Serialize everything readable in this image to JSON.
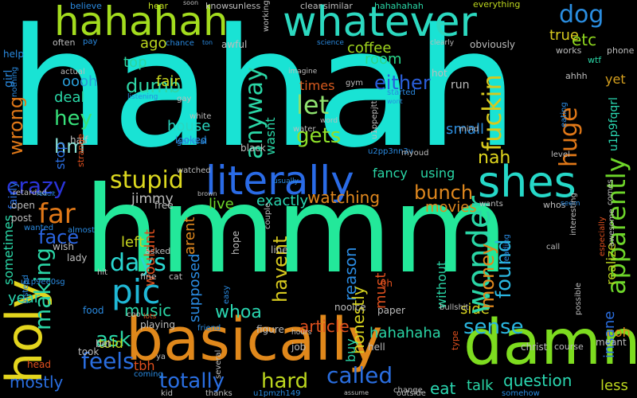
{
  "words": {
    "hahah": {
      "text": "hahah",
      "color": "#19e3d4"
    },
    "hmmm": {
      "text": "hmmm",
      "color": "#23e89a"
    },
    "basically": {
      "text": "basically",
      "color": "#e0881b"
    },
    "damn": {
      "text": "damn",
      "color": "#7ddc1f"
    },
    "hahahah": {
      "text": "hahahah",
      "color": "#a3dc1e"
    },
    "whatever": {
      "text": "whatever",
      "color": "#2cd9c0"
    },
    "literally": {
      "text": "literally",
      "color": "#2a6be6"
    },
    "shes": {
      "text": "shes",
      "color": "#26d8c8"
    },
    "holy": {
      "text": "holy",
      "color": "#e3d51e"
    },
    "stupid": {
      "text": "stupid",
      "color": "#dcd81f"
    },
    "crazy": {
      "text": "crazy",
      "color": "#2a34d9"
    },
    "far": {
      "text": "far",
      "color": "#e07818"
    },
    "pic": {
      "text": "pic",
      "color": "#20b8d6"
    },
    "dumb": {
      "text": "dumb",
      "color": "#2fd6a6"
    },
    "hey": {
      "text": "hey",
      "color": "#37e07a"
    },
    "hm": {
      "text": "hm",
      "color": "#8ae0d6"
    },
    "let": {
      "text": "let",
      "color": "#8ee06e"
    },
    "either": {
      "text": "either",
      "color": "#2a5ed9"
    },
    "gets": {
      "text": "gets",
      "color": "#8ee02a"
    },
    "dog": {
      "text": "dog",
      "color": "#2a8de0"
    },
    "etc": {
      "text": "etc",
      "color": "#8ed61e"
    },
    "true": {
      "text": "true",
      "color": "#d6c81e"
    },
    "coffee": {
      "text": "coffee",
      "color": "#a0d61e"
    },
    "room": {
      "text": "room",
      "color": "#2ad68a"
    },
    "top": {
      "text": "top",
      "color": "#2ad6a0"
    },
    "ago": {
      "text": "ago",
      "color": "#bcd61e"
    },
    "oooh": {
      "text": "oooh",
      "color": "#2a9ed9"
    },
    "deal": {
      "text": "deal",
      "color": "#2ad6a6"
    },
    "fair": {
      "text": "fair",
      "color": "#c8d61e"
    },
    "times": {
      "text": "times",
      "color": "#d65a1e"
    },
    "house": {
      "text": "house",
      "color": "#2ad6c0"
    },
    "nah": {
      "text": "nah",
      "color": "#e0d61e"
    },
    "small": {
      "text": "small",
      "color": "#2a8ad9"
    },
    "bunch": {
      "text": "bunch",
      "color": "#e0881e"
    },
    "watching": {
      "text": "watching",
      "color": "#e0881e"
    },
    "using": {
      "text": "using",
      "color": "#2ad6a6"
    },
    "exactly": {
      "text": "exactly",
      "color": "#2ad6b0"
    },
    "movies": {
      "text": "movies",
      "color": "#e0881e"
    },
    "live": {
      "text": "live",
      "color": "#6ed62a"
    },
    "jimmy": {
      "text": "jimmy",
      "color": "#bcbcbc"
    },
    "face": {
      "text": "face",
      "color": "#2a64e0"
    },
    "days": {
      "text": "days",
      "color": "#2ad6d0"
    },
    "left": {
      "text": "left",
      "color": "#c8d61e"
    },
    "music": {
      "text": "music",
      "color": "#2ad6a6"
    },
    "ask": {
      "text": "ask",
      "color": "#2ad6a6"
    },
    "feels": {
      "text": "feels",
      "color": "#2a6ee0"
    },
    "told": {
      "text": "told",
      "color": "#bcd61e"
    },
    "totally": {
      "text": "totally",
      "color": "#2a6ee0"
    },
    "hard": {
      "text": "hard",
      "color": "#bcd61e"
    },
    "called": {
      "text": "called",
      "color": "#2a6ee0"
    },
    "talk": {
      "text": "talk",
      "color": "#2ad6a6"
    },
    "question": {
      "text": "question",
      "color": "#2ad6b0"
    },
    "less": {
      "text": "less",
      "color": "#bcd61e"
    },
    "eat": {
      "text": "eat",
      "color": "#2ad6b0"
    },
    "mostly": {
      "text": "mostly",
      "color": "#2a6ee0"
    },
    "tbh": {
      "text": "tbh",
      "color": "#e0501e"
    },
    "year": {
      "text": "year",
      "color": "#2ad6b0"
    },
    "side": {
      "text": "side",
      "color": "#d6d21e"
    },
    "sense": {
      "text": "sense",
      "color": "#2ab6e0"
    },
    "ooh": {
      "text": "ooh",
      "color": "#e0881e"
    },
    "yet": {
      "text": "yet",
      "color": "#d6a01e"
    },
    "hahahaha": {
      "text": "hahahaha",
      "color": "#2ad6a6"
    },
    "whoa": {
      "text": "whoa",
      "color": "#2ad6b0"
    },
    "article": {
      "text": "article",
      "color": "#e0501e"
    },
    "fancy": {
      "text": "fancy",
      "color": "#2ad6a6"
    }
  },
  "vertical_words": [
    {
      "text": "wonder",
      "color": "#2ad6a6",
      "size": 40
    },
    {
      "text": "apparently",
      "color": "#6ed62a",
      "size": 32
    },
    {
      "text": "anyway",
      "color": "#2ad6a6",
      "size": 30
    },
    {
      "text": "fuckin",
      "color": "#d6c81e",
      "size": 32
    },
    {
      "text": "huge",
      "color": "#e07818",
      "size": 30
    },
    {
      "text": "making",
      "color": "#2ad6a6",
      "size": 28
    },
    {
      "text": "wrong",
      "color": "#e07818",
      "size": 24
    },
    {
      "text": "havent",
      "color": "#d6c81e",
      "size": 24
    },
    {
      "text": "money",
      "color": "#e0881e",
      "size": 24
    },
    {
      "text": "found",
      "color": "#2ab6e0",
      "size": 26
    },
    {
      "text": "reason",
      "color": "#2a8ae0",
      "size": 20
    },
    {
      "text": "honestly",
      "color": "#d6d21e",
      "size": 20
    },
    {
      "text": "supposed",
      "color": "#2a8ae0",
      "size": 18
    },
    {
      "text": "arent",
      "color": "#e0881e",
      "size": 18
    },
    {
      "text": "wouldnt",
      "color": "#e0501e",
      "size": 18
    },
    {
      "text": "sometimes",
      "color": "#2ad6a6",
      "size": 16
    },
    {
      "text": "fairly",
      "color": "#2a6ee0",
      "size": 14
    },
    {
      "text": "stop",
      "color": "#2a6ee0",
      "size": 16
    },
    {
      "text": "must",
      "color": "#e0501e",
      "size": 18
    },
    {
      "text": "without",
      "color": "#2ad6a6",
      "size": 16
    },
    {
      "text": "buy",
      "color": "#2ad6a6",
      "size": 16
    },
    {
      "text": "insane",
      "color": "#2a6ee0",
      "size": 18
    },
    {
      "text": "realize",
      "color": "#bcd61e",
      "size": 16
    },
    {
      "text": "u1p9fqqrl",
      "color": "#2ad6b0",
      "size": 14
    },
    {
      "text": "wasnt",
      "color": "#2ad6a6",
      "size": 16
    },
    {
      "text": "girl",
      "color": "#2a8ae0",
      "size": 14
    }
  ],
  "small_words": [
    {
      "text": "believe",
      "color": "#2a8ae0"
    },
    {
      "text": "hear",
      "color": "#bcd61e"
    },
    {
      "text": "soon",
      "color": "#bcbcbc"
    },
    {
      "text": "knows",
      "color": "#bcbcbc"
    },
    {
      "text": "unless",
      "color": "#bcbcbc"
    },
    {
      "text": "clear",
      "color": "#bcbcbc"
    },
    {
      "text": "similar",
      "color": "#bcbcbc"
    },
    {
      "text": "everything",
      "color": "#bcd61e"
    },
    {
      "text": "hahahahah",
      "color": "#2ad6a6"
    },
    {
      "text": "often",
      "color": "#bcbcbc"
    },
    {
      "text": "pay",
      "color": "#2a8ae0"
    },
    {
      "text": "chance",
      "color": "#2a8ae0"
    },
    {
      "text": "ton",
      "color": "#2a8ae0"
    },
    {
      "text": "awful",
      "color": "#bcbcbc"
    },
    {
      "text": "working",
      "color": "#bcbcbc"
    },
    {
      "text": "science",
      "color": "#2a8ae0"
    },
    {
      "text": "clearly",
      "color": "#bcbcbc"
    },
    {
      "text": "obviously",
      "color": "#bcbcbc"
    },
    {
      "text": "works",
      "color": "#bcbcbc"
    },
    {
      "text": "phone",
      "color": "#bcbcbc"
    },
    {
      "text": "wtf",
      "color": "#2ad6a6"
    },
    {
      "text": "actual",
      "color": "#bcbcbc"
    },
    {
      "text": "imagine",
      "color": "#bcbcbc"
    },
    {
      "text": "hot",
      "color": "#bcbcbc"
    },
    {
      "text": "ahhh",
      "color": "#bcbcbc"
    },
    {
      "text": "help",
      "color": "#2a8ae0"
    },
    {
      "text": "nothing",
      "color": "#2a8ae0"
    },
    {
      "text": "run",
      "color": "#bcbcbc"
    },
    {
      "text": "gym",
      "color": "#bcbcbc"
    },
    {
      "text": "started",
      "color": "#2a8ae0"
    },
    {
      "text": "wont",
      "color": "#2a8ae0"
    },
    {
      "text": "listening",
      "color": "#2a8ae0"
    },
    {
      "text": "white",
      "color": "#bcbcbc"
    },
    {
      "text": "looked",
      "color": "#2a8ae0"
    },
    {
      "text": "half",
      "color": "#bcbcbc"
    },
    {
      "text": "strange",
      "color": "#e0501e"
    },
    {
      "text": "black",
      "color": "#bcbcbc"
    },
    {
      "text": "watched",
      "color": "#bcbcbc"
    },
    {
      "text": "retarded",
      "color": "#bcbcbc"
    },
    {
      "text": "reddit",
      "color": "#2a8ae0"
    },
    {
      "text": "open",
      "color": "#bcbcbc"
    },
    {
      "text": "post",
      "color": "#bcbcbc"
    },
    {
      "text": "free",
      "color": "#bcbcbc"
    },
    {
      "text": "brown",
      "color": "#bcbcbc"
    },
    {
      "text": "wants",
      "color": "#bcbcbc"
    },
    {
      "text": "whos",
      "color": "#bcbcbc"
    },
    {
      "text": "seem",
      "color": "#2a8ae0"
    },
    {
      "text": "wish",
      "color": "#bcbcbc"
    },
    {
      "text": "lady",
      "color": "#bcbcbc"
    },
    {
      "text": "asked",
      "color": "#bcbcbc"
    },
    {
      "text": "fine",
      "color": "#bcbcbc"
    },
    {
      "text": "cat",
      "color": "#bcbcbc"
    },
    {
      "text": "line",
      "color": "#bcbcbc"
    },
    {
      "text": "hope",
      "color": "#bcbcbc"
    },
    {
      "text": "eh",
      "color": "#e0501e"
    },
    {
      "text": "instead",
      "color": "#2a8ae0"
    },
    {
      "text": "food",
      "color": "#2a8ae0"
    },
    {
      "text": "playing",
      "color": "#bcbcbc"
    },
    {
      "text": "lots",
      "color": "#e0501e"
    },
    {
      "text": "friend",
      "color": "#2a8ae0"
    },
    {
      "text": "nooice",
      "color": "#bcbcbc"
    },
    {
      "text": "paper",
      "color": "#bcbcbc"
    },
    {
      "text": "took",
      "color": "#bcbcbc"
    },
    {
      "text": "bet",
      "color": "#bcbcbc"
    },
    {
      "text": "figure",
      "color": "#bcbcbc"
    },
    {
      "text": "job",
      "color": "#bcbcbc"
    },
    {
      "text": "hell",
      "color": "#bcbcbc"
    },
    {
      "text": "type",
      "color": "#e0501e"
    },
    {
      "text": "christ",
      "color": "#bcbcbc"
    },
    {
      "text": "course",
      "color": "#bcbcbc"
    },
    {
      "text": "meant",
      "color": "#bcbcbc"
    },
    {
      "text": "head",
      "color": "#e0501e"
    },
    {
      "text": "coming",
      "color": "#2a8ae0"
    },
    {
      "text": "thanks",
      "color": "#bcbcbc"
    },
    {
      "text": "outside",
      "color": "#bcbcbc"
    },
    {
      "text": "change",
      "color": "#bcbcbc"
    },
    {
      "text": "assume",
      "color": "#bcbcbc"
    },
    {
      "text": "somehow",
      "color": "#2a8ae0"
    },
    {
      "text": "kid",
      "color": "#bcbcbc"
    },
    {
      "text": "u1pmzh149",
      "color": "#2a8ae0"
    },
    {
      "text": "u1ppepjtt",
      "color": "#bcbcbc"
    },
    {
      "text": "u1p9ee0sg",
      "color": "#2a8ae0"
    },
    {
      "text": "u2pp3nn3v",
      "color": "#2a8ae0"
    },
    {
      "text": "myoud",
      "color": "#bcbcbc"
    },
    {
      "text": "water",
      "color": "#bcbcbc"
    },
    {
      "text": "word",
      "color": "#bcbcbc"
    },
    {
      "text": "mind",
      "color": "#bcbcbc"
    },
    {
      "text": "eating",
      "color": "#2a8ae0"
    },
    {
      "text": "level",
      "color": "#bcbcbc"
    },
    {
      "text": "comes",
      "color": "#bcbcbc"
    },
    {
      "text": "awesome",
      "color": "#bcbcbc"
    },
    {
      "text": "especially",
      "color": "#e0501e"
    },
    {
      "text": "call",
      "color": "#bcbcbc"
    },
    {
      "text": "reading",
      "color": "#2a8ae0"
    },
    {
      "text": "bullshit",
      "color": "#bcbcbc"
    },
    {
      "text": "possible",
      "color": "#bcbcbc"
    },
    {
      "text": "interesting",
      "color": "#bcbcbc"
    },
    {
      "text": "gay",
      "color": "#bcbcbc"
    },
    {
      "text": "general",
      "color": "#2a8ae0"
    },
    {
      "text": "couple",
      "color": "#bcbcbc"
    },
    {
      "text": "easy",
      "color": "#2a8ae0"
    },
    {
      "text": "several",
      "color": "#bcbcbc"
    },
    {
      "text": "wanted",
      "color": "#2a8ae0"
    },
    {
      "text": "usually",
      "color": "#2a8ae0"
    },
    {
      "text": "hours",
      "color": "#bcbcbc"
    },
    {
      "text": "almost",
      "color": "#2a8ae0"
    },
    {
      "text": "hit",
      "color": "#bcbcbc"
    },
    {
      "text": "coo",
      "color": "#bcbcbc"
    },
    {
      "text": "ya",
      "color": "#bcbcbc"
    }
  ]
}
